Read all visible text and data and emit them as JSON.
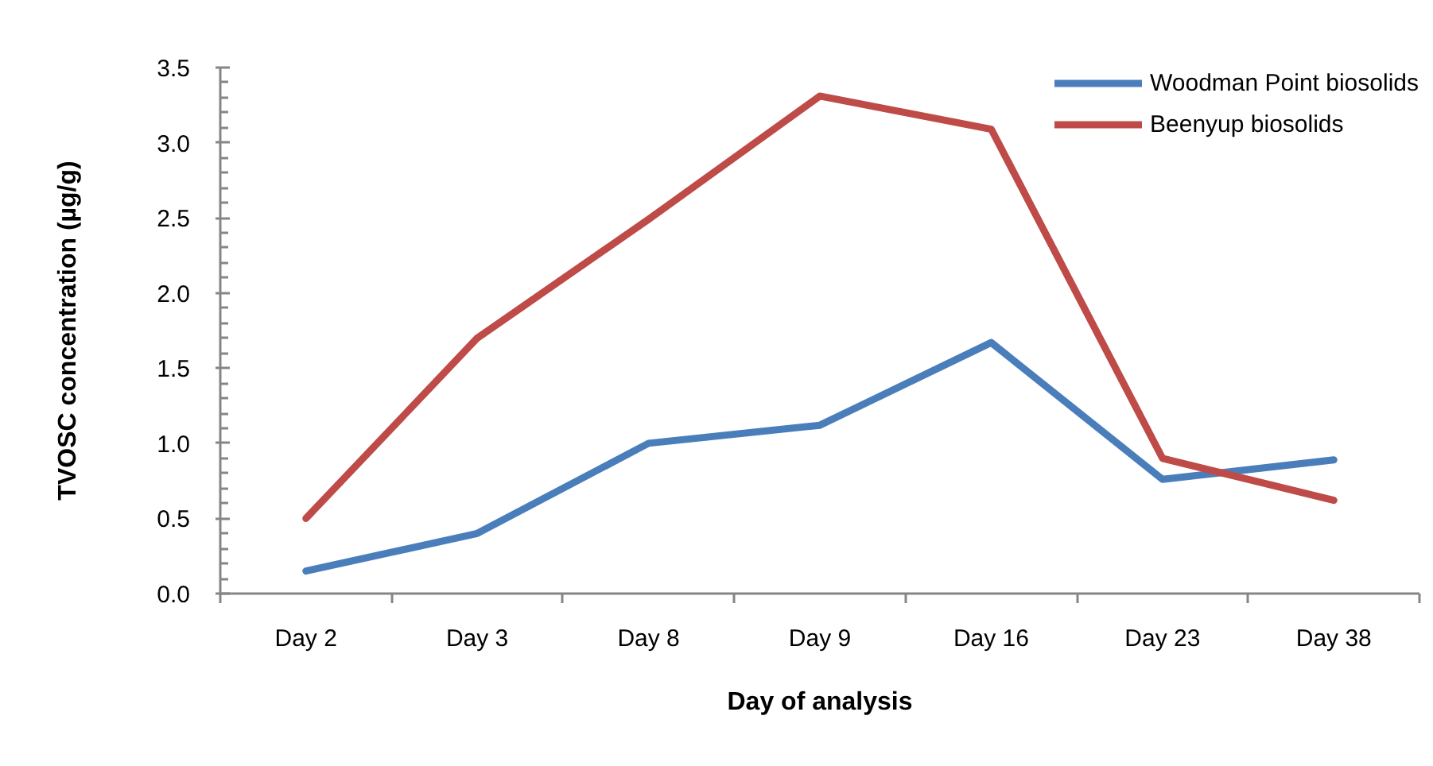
{
  "chart_data": {
    "type": "line",
    "xlabel": "Day of analysis",
    "ylabel": "TVOSC concentration (µg/g)",
    "categories": [
      "Day 2",
      "Day 3",
      "Day 8",
      "Day 9",
      "Day 16",
      "Day 23",
      "Day 38"
    ],
    "series": [
      {
        "name": "Woodman Point biosolids",
        "color": "#4a7ebb",
        "values": [
          0.15,
          0.4,
          1.0,
          1.12,
          1.67,
          0.76,
          0.89
        ]
      },
      {
        "name": "Beenyup biosolids",
        "color": "#be4b48",
        "values": [
          0.5,
          1.7,
          2.49,
          3.31,
          3.09,
          0.9,
          0.62
        ]
      }
    ],
    "ylim": [
      0,
      3.5
    ],
    "yticks": [
      {
        "value": 0,
        "label": "0.0"
      },
      {
        "value": 0.5,
        "label": "0.5"
      },
      {
        "value": 1,
        "label": "1.0"
      },
      {
        "value": 1.5,
        "label": "1.5"
      },
      {
        "value": 2,
        "label": "2.0"
      },
      {
        "value": 2.5,
        "label": "2.5"
      },
      {
        "value": 3,
        "label": "3.0"
      },
      {
        "value": 3.5,
        "label": "3.5"
      }
    ],
    "grid": false,
    "legend": "top right",
    "marker": "none",
    "line_style": "solid"
  }
}
